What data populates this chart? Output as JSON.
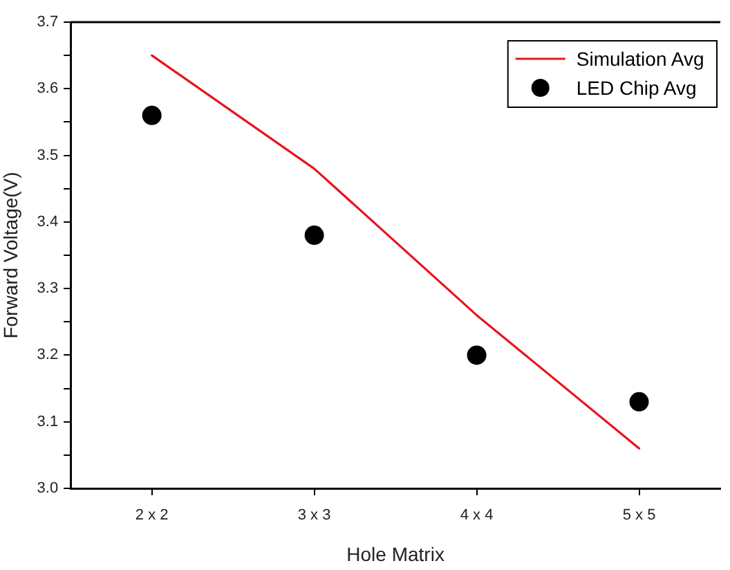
{
  "chart_data": {
    "type": "line",
    "xlabel": "Hole Matrix",
    "ylabel": "Forward Voltage(V)",
    "categories": [
      "2 x 2",
      "3 x 3",
      "4 x 4",
      "5 x 5"
    ],
    "series": [
      {
        "name": "Simulation Avg",
        "type": "line",
        "color": "#e8141c",
        "values": [
          3.65,
          3.48,
          3.26,
          3.06
        ],
        "marker": "none",
        "line_style": "solid"
      },
      {
        "name": "LED Chip Avg",
        "type": "scatter",
        "color": "#000000",
        "values": [
          3.56,
          3.38,
          3.2,
          3.13
        ],
        "marker": "circle"
      }
    ],
    "ylim": [
      3.0,
      3.7
    ],
    "yticks": [
      {
        "value": 3.0,
        "label": "3.0"
      },
      {
        "value": 3.05,
        "label": null
      },
      {
        "value": 3.1,
        "label": "3.1"
      },
      {
        "value": 3.15,
        "label": null
      },
      {
        "value": 3.2,
        "label": "3.2"
      },
      {
        "value": 3.25,
        "label": null
      },
      {
        "value": 3.3,
        "label": "3.3"
      },
      {
        "value": 3.35,
        "label": null
      },
      {
        "value": 3.4,
        "label": "3.4"
      },
      {
        "value": 3.45,
        "label": null
      },
      {
        "value": 3.5,
        "label": "3.5"
      },
      {
        "value": 3.55,
        "label": null
      },
      {
        "value": 3.6,
        "label": "3.6"
      },
      {
        "value": 3.65,
        "label": null
      },
      {
        "value": 3.7,
        "label": "3.7"
      }
    ],
    "legend": "top right"
  }
}
